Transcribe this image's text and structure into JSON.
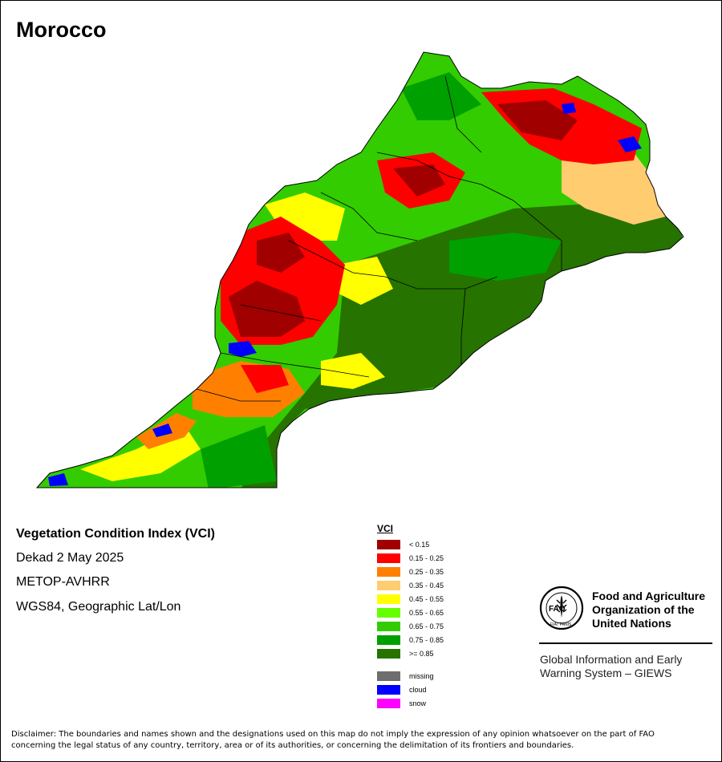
{
  "map": {
    "title": "Morocco",
    "colors": {
      "lt015": "#a00000",
      "c015_025": "#ff0000",
      "c025_035": "#ff8000",
      "c035_045": "#ffcc70",
      "c045_055": "#ffff00",
      "c055_065": "#66ff00",
      "c065_075": "#33cc00",
      "c075_085": "#00a000",
      "ge085": "#267300",
      "missing": "#6e6e6e",
      "cloud": "#0000ff",
      "snow": "#ff00ff"
    }
  },
  "info": {
    "index_name": "Vegetation Condition Index (VCI)",
    "period": "Dekad 2 May 2025",
    "sensor": "METOP-AVHRR",
    "projection": "WGS84, Geographic Lat/Lon"
  },
  "legend": {
    "title": "VCI",
    "classes": [
      {
        "label": "< 0.15",
        "color": "#a00000"
      },
      {
        "label": "0.15 - 0.25",
        "color": "#ff0000"
      },
      {
        "label": "0.25 - 0.35",
        "color": "#ff8000"
      },
      {
        "label": "0.35 - 0.45",
        "color": "#ffcc70"
      },
      {
        "label": "0.45 - 0.55",
        "color": "#ffff00"
      },
      {
        "label": "0.55 - 0.65",
        "color": "#66ff00"
      },
      {
        "label": "0.65 - 0.75",
        "color": "#33cc00"
      },
      {
        "label": "0.75 - 0.85",
        "color": "#00a000"
      },
      {
        "label": ">= 0.85",
        "color": "#267300"
      }
    ],
    "special": [
      {
        "label": "missing",
        "color": "#6e6e6e"
      },
      {
        "label": "cloud",
        "color": "#0000ff"
      },
      {
        "label": "snow",
        "color": "#ff00ff"
      }
    ]
  },
  "org": {
    "logo_text": "FAO",
    "logo_motto": "FIAT PANIS",
    "name_line1": "Food and Agriculture",
    "name_line2": "Organization of the",
    "name_line3": "United Nations",
    "system_line1": "Global Information and Early",
    "system_line2": "Warning System – GIEWS"
  },
  "disclaimer": {
    "line1": "Disclaimer: The boundaries and names shown and the designations used on this map do not imply the expression of any opinion whatsoever on the part of FAO",
    "line2": "concerning the legal status of any country, territory, area or of its authorities, or concerning the delimitation of its frontiers and boundaries."
  }
}
